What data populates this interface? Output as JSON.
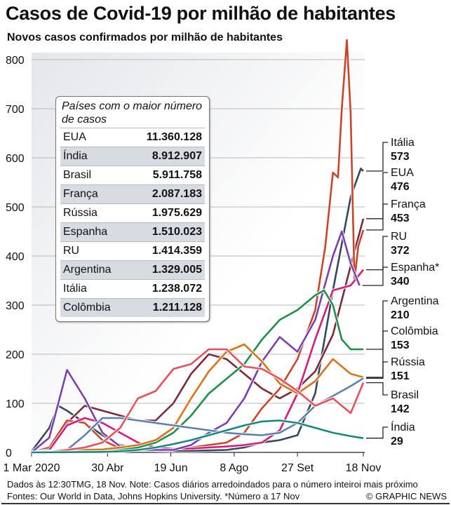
{
  "header": {
    "title": "Casos de Covid-19 por milhão de habitantes",
    "subtitle": "Novos casos confirmados por milhão de habitantes"
  },
  "table": {
    "title": "Países com o maior número de casos",
    "rows": [
      {
        "country": "EUA",
        "cases": "11.360.128"
      },
      {
        "country": "Índia",
        "cases": "8.912.907"
      },
      {
        "country": "Brasil",
        "cases": "5.911.758"
      },
      {
        "country": "França",
        "cases": "2.087.183"
      },
      {
        "country": "Rússia",
        "cases": "1.975.629"
      },
      {
        "country": "Espanha",
        "cases": "1.510.023"
      },
      {
        "country": "RU",
        "cases": "1.414.359"
      },
      {
        "country": "Argentina",
        "cases": "1.329.005"
      },
      {
        "country": "Itália",
        "cases": "1.238.072"
      },
      {
        "country": "Colômbia",
        "cases": "1.211.128"
      }
    ]
  },
  "footer": {
    "note": "Dados às 12:30TMG, 18 Nov. Note: Casos diários arredoindados para o número inteiroi mais próximo",
    "sources": "Fontes: Our World in Data, Johns Hopkins University. *Número a 17 Nov",
    "credit": "© GRAPHIC NEWS"
  },
  "chart_data": {
    "type": "line",
    "title": "Casos de Covid-19 por milhão de habitantes",
    "ylabel": "Novos casos confirmados por milhão de habitantes",
    "x_unit": "days since 1 Mar 2020",
    "xlim": [
      0,
      262
    ],
    "ylim": [
      0,
      800
    ],
    "yticks": [
      0,
      100,
      200,
      300,
      400,
      500,
      600,
      700,
      800
    ],
    "xticks": [
      {
        "day": 0,
        "label": "1 Mar 2020"
      },
      {
        "day": 60,
        "label": "30 Abr"
      },
      {
        "day": 110,
        "label": "19 Jun"
      },
      {
        "day": 160,
        "label": "8 Ago"
      },
      {
        "day": 210,
        "label": "27 Set"
      },
      {
        "day": 262,
        "label": "18 Nov"
      }
    ],
    "grid": true,
    "series": [
      {
        "name": "Itália",
        "value": "573",
        "color": "#34495e",
        "x": [
          0,
          14,
          21,
          28,
          42,
          56,
          70,
          84,
          98,
          112,
          126,
          140,
          154,
          168,
          182,
          196,
          210,
          224,
          238,
          252,
          260,
          262
        ],
        "y": [
          2,
          50,
          95,
          85,
          60,
          35,
          15,
          7,
          4,
          3,
          3,
          4,
          5,
          10,
          20,
          25,
          35,
          120,
          330,
          520,
          578,
          573
        ]
      },
      {
        "name": "EUA",
        "value": "476",
        "color": "#7a2a3a",
        "x": [
          0,
          14,
          28,
          42,
          56,
          70,
          84,
          98,
          112,
          126,
          140,
          154,
          168,
          182,
          196,
          210,
          224,
          238,
          252,
          262
        ],
        "y": [
          0,
          5,
          60,
          95,
          85,
          75,
          65,
          65,
          100,
          160,
          200,
          190,
          160,
          130,
          110,
          130,
          165,
          240,
          380,
          476
        ]
      },
      {
        "name": "França",
        "value": "453",
        "color": "#c8452a",
        "x": [
          0,
          14,
          28,
          42,
          56,
          70,
          84,
          98,
          112,
          126,
          140,
          154,
          168,
          182,
          196,
          210,
          224,
          232,
          238,
          242,
          245,
          249,
          252,
          255,
          258,
          262
        ],
        "y": [
          0,
          10,
          65,
          60,
          25,
          8,
          5,
          5,
          8,
          10,
          15,
          20,
          40,
          90,
          130,
          190,
          290,
          420,
          570,
          560,
          700,
          840,
          690,
          350,
          420,
          453
        ]
      },
      {
        "name": "RU",
        "value": "372",
        "color": "#d81b7a",
        "x": [
          0,
          14,
          28,
          42,
          56,
          70,
          84,
          98,
          112,
          126,
          140,
          154,
          168,
          182,
          196,
          210,
          224,
          238,
          252,
          262
        ],
        "y": [
          0,
          5,
          55,
          70,
          60,
          40,
          20,
          10,
          7,
          8,
          10,
          12,
          15,
          20,
          45,
          120,
          230,
          330,
          340,
          372
        ]
      },
      {
        "name": "Espanha*",
        "value": "340",
        "color": "#7b3fb0",
        "x": [
          0,
          14,
          28,
          42,
          56,
          70,
          84,
          98,
          112,
          126,
          140,
          154,
          168,
          182,
          196,
          210,
          224,
          238,
          245,
          252,
          259
        ],
        "y": [
          0,
          30,
          168,
          110,
          40,
          12,
          5,
          5,
          5,
          15,
          40,
          60,
          110,
          185,
          235,
          205,
          270,
          400,
          450,
          385,
          340
        ]
      },
      {
        "name": "Argentina",
        "value": "210",
        "color": "#1e8f4a",
        "x": [
          0,
          28,
          56,
          70,
          84,
          98,
          112,
          126,
          140,
          154,
          168,
          182,
          196,
          210,
          224,
          231,
          238,
          245,
          252,
          262
        ],
        "y": [
          0,
          1,
          2,
          5,
          10,
          20,
          40,
          75,
          120,
          150,
          180,
          230,
          270,
          290,
          320,
          330,
          300,
          230,
          210,
          210
        ]
      },
      {
        "name": "Colômbia",
        "value": "153",
        "color": "#d9731e",
        "x": [
          0,
          14,
          28,
          42,
          56,
          70,
          84,
          98,
          112,
          126,
          140,
          154,
          168,
          182,
          196,
          210,
          224,
          238,
          252,
          262
        ],
        "y": [
          0,
          1,
          4,
          5,
          6,
          10,
          15,
          25,
          50,
          110,
          165,
          205,
          220,
          185,
          140,
          120,
          145,
          190,
          160,
          153
        ]
      },
      {
        "name": "Rússia",
        "value": "151",
        "color": "#5a82ad",
        "x": [
          0,
          28,
          42,
          56,
          70,
          84,
          98,
          112,
          126,
          140,
          154,
          168,
          182,
          196,
          210,
          224,
          238,
          252,
          262
        ],
        "y": [
          0,
          5,
          35,
          70,
          70,
          65,
          60,
          55,
          50,
          45,
          40,
          37,
          35,
          40,
          60,
          95,
          115,
          135,
          151
        ]
      },
      {
        "name": "Brasil",
        "value": "142",
        "color": "#e8505b",
        "x": [
          0,
          14,
          28,
          42,
          56,
          70,
          84,
          98,
          112,
          126,
          140,
          154,
          168,
          182,
          196,
          210,
          224,
          238,
          252,
          262
        ],
        "y": [
          0,
          1,
          5,
          10,
          20,
          50,
          110,
          125,
          170,
          180,
          210,
          210,
          175,
          170,
          150,
          125,
          95,
          110,
          80,
          142
        ]
      },
      {
        "name": "Índia",
        "value": "29",
        "color": "#17897d",
        "x": [
          0,
          56,
          70,
          84,
          98,
          112,
          126,
          140,
          154,
          168,
          182,
          196,
          210,
          224,
          238,
          252,
          262
        ],
        "y": [
          0,
          1,
          2,
          5,
          10,
          17,
          25,
          35,
          45,
          55,
          63,
          65,
          60,
          50,
          40,
          33,
          29
        ]
      }
    ]
  }
}
